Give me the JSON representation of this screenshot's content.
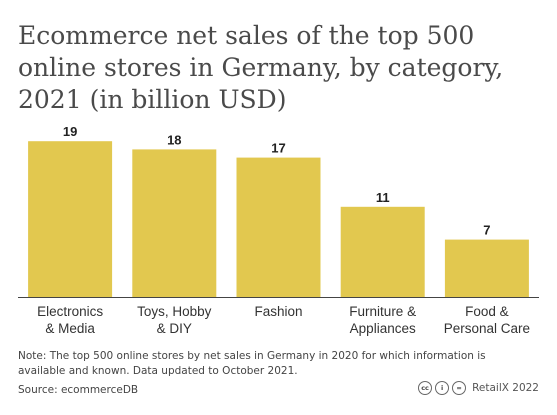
{
  "title": "Ecommerce net sales of the top 500 online stores in Germany, by category, 2021 (in billion USD)",
  "note": "Note: The top 500 online stores by net sales in Germany in 2020 for which information is available and known. Data updated to October 2021.",
  "source": "Source: ecommerceDB",
  "credit": {
    "text": "RetailX 2022",
    "icons": [
      "cc-icon",
      "by-icon",
      "nd-icon"
    ],
    "icon_glyphs": [
      "cc",
      "i",
      "="
    ]
  },
  "colors": {
    "bar": "#e2c84f",
    "axis": "#444444",
    "grid": "#e6e6e6"
  },
  "chart_data": {
    "type": "bar",
    "categories": [
      [
        "Electronics",
        "& Media"
      ],
      [
        "Toys, Hobby",
        "& DIY"
      ],
      [
        "Fashion"
      ],
      [
        "Furniture &",
        "Appliances"
      ],
      [
        "Food &",
        "Personal Care"
      ]
    ],
    "values": [
      19,
      18,
      17,
      11,
      7
    ],
    "data_labels": [
      "19",
      "18",
      "17",
      "11",
      "7"
    ],
    "ylim": [
      0,
      20
    ],
    "xlabel": "",
    "ylabel": "",
    "grid": false,
    "legend": "none"
  }
}
